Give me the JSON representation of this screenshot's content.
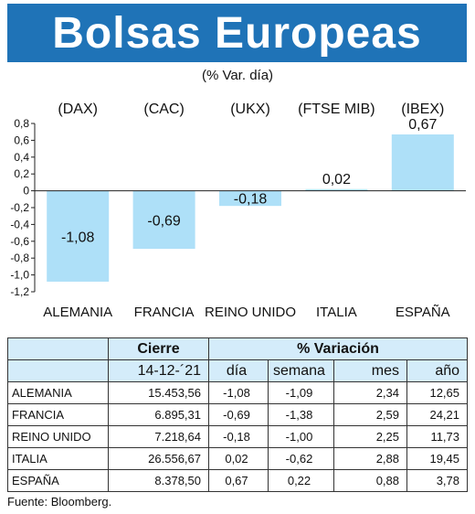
{
  "title": "Bolsas Europeas",
  "subtitle": "(% Var. día)",
  "colors": {
    "title_bar": "#1f73b7",
    "bar": "#aee0f8",
    "header_bg": "#d4ecfa"
  },
  "chart_data": {
    "type": "bar",
    "title": "Bolsas Europeas",
    "subtitle": "(% Var. día)",
    "categories": [
      "ALEMANIA",
      "FRANCIA",
      "REINO UNIDO",
      "ITALIA",
      "ESPAÑA"
    ],
    "index_labels": [
      "(DAX)",
      "(CAC)",
      "(UKX)",
      "(FTSE MIB)",
      "(IBEX)"
    ],
    "values": [
      -1.08,
      -0.69,
      -0.18,
      0.02,
      0.67
    ],
    "value_labels": [
      "-1,08",
      "-0,69",
      "-0,18",
      "0,02",
      "0,67"
    ],
    "ylim": [
      -1.2,
      0.8
    ],
    "yticks": [
      0.8,
      0.6,
      0.4,
      0.2,
      0,
      -0.2,
      -0.4,
      -0.6,
      -0.8,
      -1.0,
      -1.2
    ],
    "ytick_labels": [
      "0,8",
      "0,6",
      "0,4",
      "0,2",
      "0",
      "-0,2",
      "-0,4",
      "-0,6",
      "-0,8",
      "-1,0",
      "-1,2"
    ],
    "grid": false,
    "legend": "none"
  },
  "table": {
    "group_headers": {
      "cierre": "Cierre",
      "variacion": "% Variación"
    },
    "sub_headers": {
      "cierre_date": "14-12-´21",
      "dia": "día",
      "semana": "semana",
      "mes": "mes",
      "ano": "año"
    },
    "rows": [
      {
        "name": "ALEMANIA",
        "cierre": "15.453,56",
        "dia": "-1,08",
        "semana": "-1,09",
        "mes": "2,34",
        "ano": "12,65"
      },
      {
        "name": "FRANCIA",
        "cierre": "6.895,31",
        "dia": "-0,69",
        "semana": "-1,38",
        "mes": "2,59",
        "ano": "24,21"
      },
      {
        "name": "REINO UNIDO",
        "cierre": "7.218,64",
        "dia": "-0,18",
        "semana": "-1,00",
        "mes": "2,25",
        "ano": "11,73"
      },
      {
        "name": "ITALIA",
        "cierre": "26.556,67",
        "dia": "0,02",
        "semana": "-0,62",
        "mes": "2,88",
        "ano": "19,45"
      },
      {
        "name": "ESPAÑA",
        "cierre": "8.378,50",
        "dia": "0,67",
        "semana": "0,22",
        "mes": "0,88",
        "ano": "3,78"
      }
    ]
  },
  "source": "Fuente: Bloomberg."
}
